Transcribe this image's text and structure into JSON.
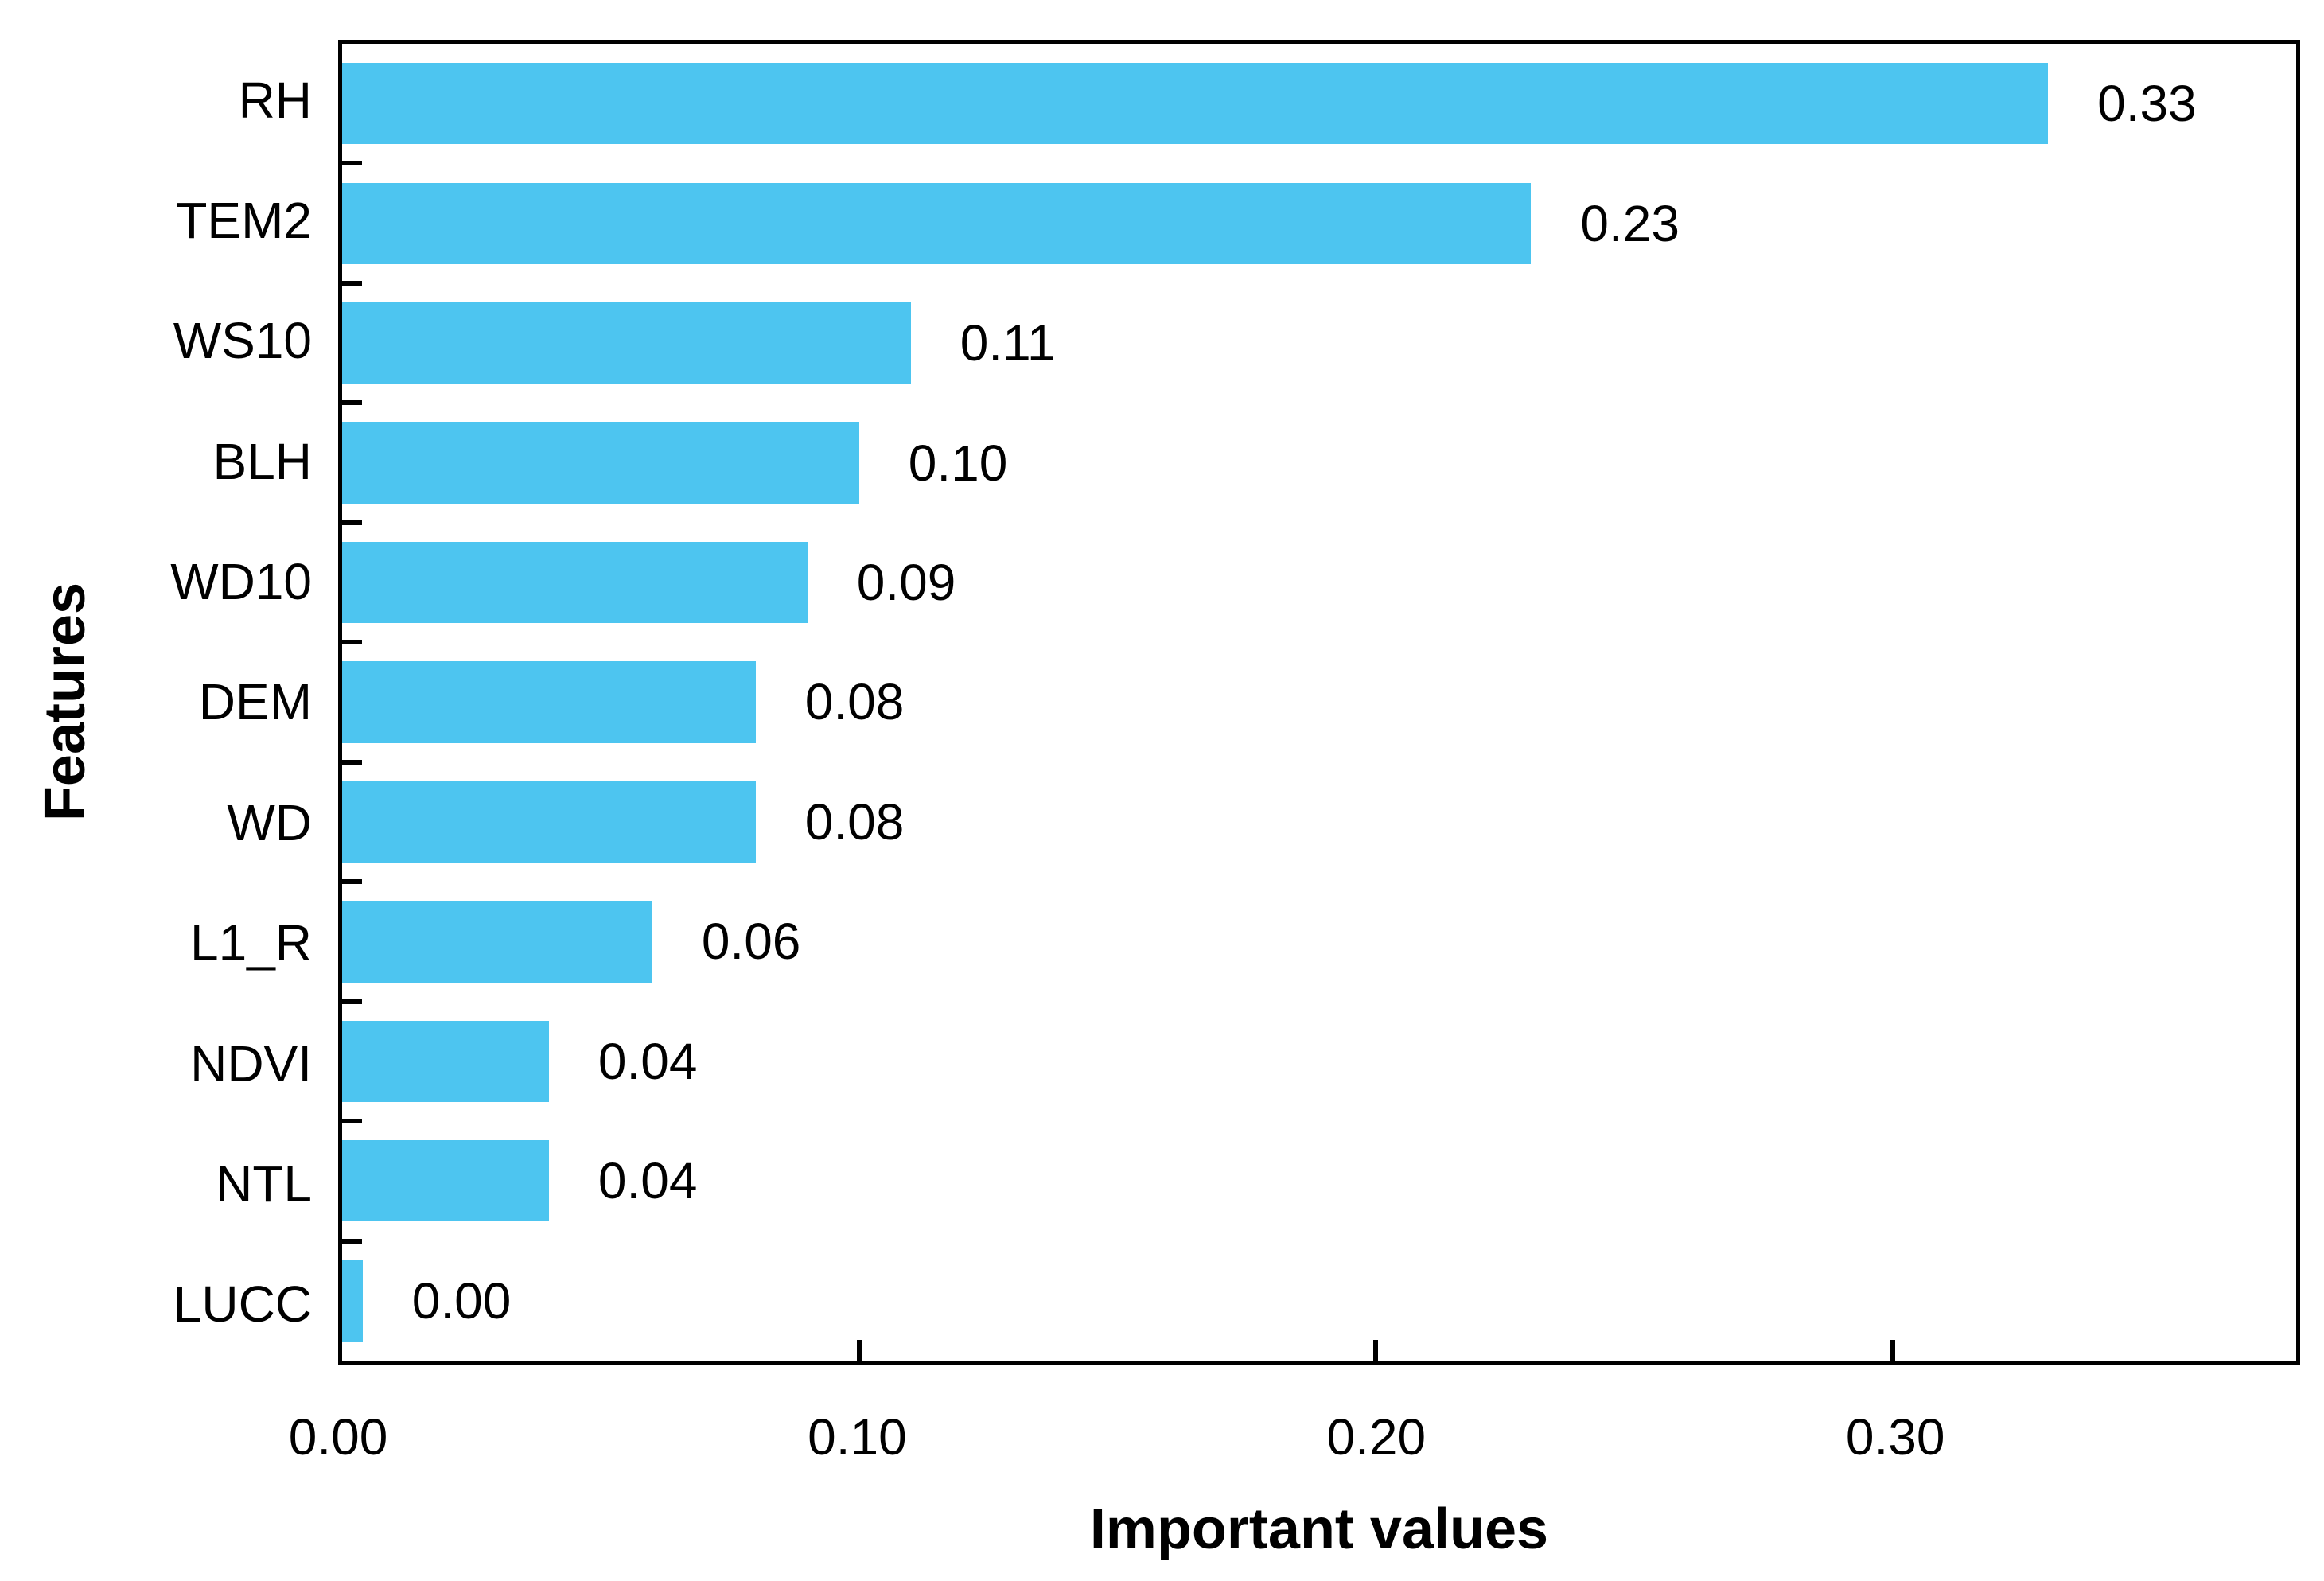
{
  "chart_data": {
    "type": "bar",
    "orientation": "horizontal",
    "title": "",
    "xlabel": "Important values",
    "ylabel": "Features",
    "categories": [
      "RH",
      "TEM2",
      "WS10",
      "BLH",
      "WD10",
      "DEM",
      "WD",
      "L1_R",
      "NDVI",
      "NTL",
      "LUCC"
    ],
    "values": [
      0.33,
      0.23,
      0.11,
      0.1,
      0.09,
      0.08,
      0.08,
      0.06,
      0.04,
      0.04,
      0.0
    ],
    "value_labels": [
      "0.33",
      "0.23",
      "0.11",
      "0.10",
      "0.09",
      "0.08",
      "0.08",
      "0.06",
      "0.04",
      "0.04",
      "0.00"
    ],
    "xticks": [
      0.0,
      0.1,
      0.2,
      0.3
    ],
    "xtick_labels": [
      "0.00",
      "0.10",
      "0.20",
      "0.30"
    ],
    "xlim": [
      0,
      0.378
    ],
    "grid": "off",
    "legend": "none",
    "bar_color": "#4DC5F0",
    "axis_color": "#000000"
  }
}
